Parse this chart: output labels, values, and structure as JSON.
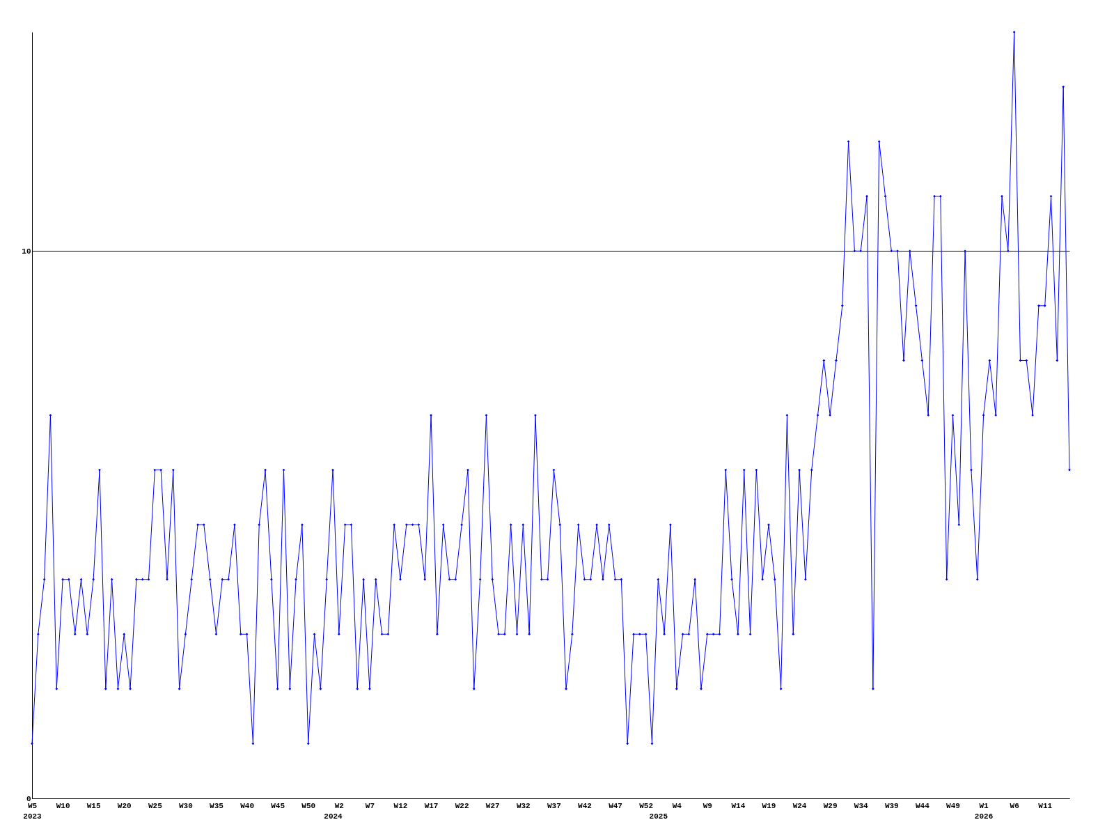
{
  "chart_data": {
    "type": "line",
    "categories": [
      "W5\n2023",
      null,
      null,
      null,
      null,
      "W10",
      null,
      null,
      null,
      null,
      "W15",
      null,
      null,
      null,
      null,
      "W20",
      null,
      null,
      null,
      null,
      "W25",
      null,
      null,
      null,
      null,
      "W30",
      null,
      null,
      null,
      null,
      "W35",
      null,
      null,
      null,
      null,
      "W40",
      null,
      null,
      null,
      null,
      "W45",
      null,
      null,
      null,
      null,
      "W50",
      null,
      null,
      null,
      "\n2024",
      "W2",
      null,
      null,
      null,
      null,
      "W7",
      null,
      null,
      null,
      null,
      "W12",
      null,
      null,
      null,
      null,
      "W17",
      null,
      null,
      null,
      null,
      "W22",
      null,
      null,
      null,
      null,
      "W27",
      null,
      null,
      null,
      null,
      "W32",
      null,
      null,
      null,
      null,
      "W37",
      null,
      null,
      null,
      null,
      "W42",
      null,
      null,
      null,
      null,
      "W47",
      null,
      null,
      null,
      null,
      "W52",
      null,
      "\n2025",
      null,
      null,
      "W4",
      null,
      null,
      null,
      null,
      "W9",
      null,
      null,
      null,
      null,
      "W14",
      null,
      null,
      null,
      null,
      "W19",
      null,
      null,
      null,
      null,
      "W24",
      null,
      null,
      null,
      null,
      "W29",
      null,
      null,
      null,
      null,
      "W34",
      null,
      null,
      null,
      null,
      "W39",
      null,
      null,
      null,
      null,
      "W44",
      null,
      null,
      null,
      null,
      "W49",
      null,
      null,
      null,
      null,
      "W1\n2026",
      null,
      null,
      null,
      null,
      "W6",
      null,
      null,
      null,
      null,
      "W11",
      null,
      null,
      null,
      null
    ],
    "series": [
      {
        "color": "#0000ff",
        "values": [
          1,
          3,
          4,
          7,
          2,
          4,
          4,
          3,
          4,
          3,
          4,
          6,
          2,
          4,
          2,
          3,
          2,
          4,
          4,
          4,
          6,
          6,
          4,
          6,
          2,
          3,
          4,
          5,
          5,
          4,
          3,
          4,
          4,
          5,
          3,
          3,
          1,
          5,
          6,
          4,
          2,
          6,
          2,
          4,
          5,
          1,
          3,
          2,
          4,
          6,
          3,
          5,
          5,
          2,
          4,
          2,
          4,
          3,
          3,
          5,
          4,
          5,
          5,
          5,
          4,
          7,
          3,
          5,
          4,
          4,
          5,
          6,
          2,
          4,
          7,
          4,
          3,
          3,
          5,
          3,
          5,
          3,
          7,
          4,
          4,
          6,
          5,
          2,
          3,
          5,
          4,
          4,
          5,
          4,
          5,
          4,
          4,
          1,
          3,
          3,
          3,
          1,
          4,
          3,
          5,
          2,
          3,
          3,
          4,
          2,
          3,
          3,
          3,
          6,
          4,
          3,
          6,
          3,
          6,
          4,
          5,
          4,
          2,
          7,
          3,
          6,
          4,
          6,
          7,
          8,
          7,
          8,
          9,
          12,
          10,
          10,
          11,
          2,
          12,
          11,
          10,
          10,
          8,
          10,
          9,
          8,
          7,
          11,
          11,
          4,
          7,
          5,
          10,
          6,
          4,
          7,
          8,
          7,
          11,
          10,
          14,
          8,
          8,
          7,
          9,
          9,
          11,
          8,
          13,
          6
        ]
      }
    ],
    "ylim": [
      0,
      14
    ],
    "yticks": [
      0,
      10
    ],
    "grid": "y",
    "marker": "diamond",
    "line_style": "solid"
  }
}
